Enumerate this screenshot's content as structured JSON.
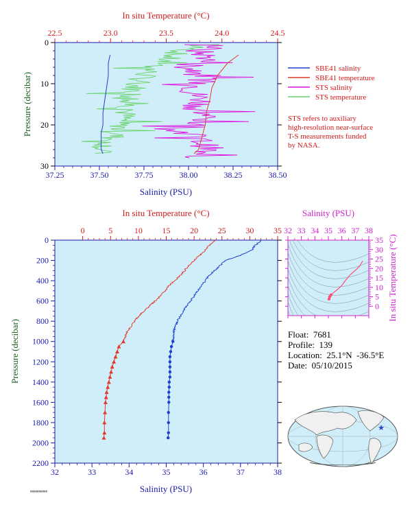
{
  "colors": {
    "plot_bg": "#cfeef9",
    "salinity_axis": "#1a1aaa",
    "temperature_axis": "#d11a1a",
    "sbe41_salinity": "#1f3fd0",
    "sbe41_temperature": "#e23a2a",
    "sts_salinity": "#e010e0",
    "sts_temperature": "#6ad36a",
    "pressure_axis": "#1b5e20",
    "ts_axis": "#cc22cc",
    "ts_profile": "#ff4f7b"
  },
  "top_panel": {
    "temp_axis_title": "In situ Temperature (°C)",
    "sal_axis_title": "Salinity (PSU)",
    "pressure_axis_title": "Pressure (decibar)",
    "legend": [
      {
        "label": "SBE41 salinity",
        "color": "#1f3fd0"
      },
      {
        "label": "SBE41 temperature",
        "color": "#e23a2a"
      },
      {
        "label": "STS salinity",
        "color": "#e010e0"
      },
      {
        "label": "STS temperature",
        "color": "#6ad36a"
      }
    ],
    "note_lines": [
      "STS refers to auxiliary",
      "high-resolution near-surface",
      "T-S measurements funded",
      "by NASA."
    ]
  },
  "bottom_panel": {
    "temp_axis_title": "In situ Temperature (°C)",
    "sal_axis_title": "Salinity (PSU)",
    "pressure_axis_title": "Pressure (decibar)"
  },
  "ts_panel": {
    "sal_axis_title": "Salinity (PSU)",
    "temp_axis_title": "In situ Temperature (°C)"
  },
  "info": {
    "float": "Float:  7681",
    "profile": "Profile:  139",
    "location": "Location:  25.1°N  -36.5°E",
    "date": "Date:  05/10/2015"
  },
  "footer_tag": "##########",
  "chart_data": [
    {
      "type": "line",
      "name": "near-surface profile",
      "xlabel_top": "In situ Temperature (°C)",
      "xlim_top": [
        22.5,
        24.5
      ],
      "xticks_top": [
        "22.5",
        "23.0",
        "23.5",
        "24.0",
        "24.5"
      ],
      "xlabel_bottom": "Salinity (PSU)",
      "xlim_bottom": [
        37.25,
        38.5
      ],
      "xticks_bottom": [
        "37.25",
        "37.50",
        "37.75",
        "38.00",
        "38.25",
        "38.50"
      ],
      "ylabel": "Pressure (decibar)",
      "ylim": [
        30,
        0
      ],
      "yticks": [
        "0",
        "10",
        "20",
        "30"
      ],
      "series": [
        {
          "name": "SBE41 salinity",
          "axis": "salinity",
          "x": [
            37.56,
            37.55,
            37.55,
            37.54,
            37.53,
            37.52,
            37.52,
            37.51,
            37.51,
            37.51,
            37.52
          ],
          "y": [
            3,
            5,
            8,
            11,
            14,
            17,
            20,
            22,
            24,
            26,
            27
          ]
        },
        {
          "name": "SBE41 temperature",
          "axis": "temperature",
          "x": [
            24.15,
            24.05,
            23.96,
            23.91,
            23.89,
            23.86,
            23.85,
            23.83,
            23.81,
            23.79,
            23.75
          ],
          "y": [
            3,
            5,
            8,
            11,
            14,
            17,
            20,
            22,
            24,
            26,
            27
          ]
        },
        {
          "name": "STS salinity",
          "axis": "salinity",
          "x": [
            38.2,
            38.05,
            38.12,
            38.0,
            38.1,
            38.06,
            38.02,
            38.08,
            38.05,
            38.1,
            38.03,
            38.0,
            38.07,
            38.12,
            38.02,
            38.05
          ],
          "y": [
            0.5,
            2,
            4,
            6,
            8,
            10,
            12,
            14,
            16,
            18,
            20,
            22,
            24,
            26,
            27,
            28
          ]
        },
        {
          "name": "STS temperature",
          "axis": "temperature",
          "x": [
            23.96,
            23.62,
            23.5,
            23.38,
            23.3,
            23.24,
            23.2,
            23.18,
            23.15,
            23.12,
            23.1,
            23.05,
            23.0,
            22.92,
            22.88
          ],
          "y": [
            0.5,
            2,
            4,
            6,
            8,
            10,
            12,
            14,
            16,
            18,
            20,
            22,
            24,
            26,
            27
          ]
        }
      ]
    },
    {
      "type": "line",
      "name": "full-depth profile",
      "xlabel_top": "In situ Temperature (°C)",
      "xlim_top": [
        -5,
        35
      ],
      "xticks_top": [
        "0",
        "5",
        "10",
        "15",
        "20",
        "25",
        "30",
        "35"
      ],
      "xlabel_bottom": "Salinity (PSU)",
      "xlim_bottom": [
        32,
        38
      ],
      "xticks_bottom": [
        "32",
        "33",
        "34",
        "35",
        "36",
        "37",
        "38"
      ],
      "ylabel": "Pressure (decibar)",
      "ylim": [
        2200,
        0
      ],
      "yticks": [
        "0",
        "200",
        "400",
        "600",
        "800",
        "1000",
        "1200",
        "1400",
        "1600",
        "1800",
        "2000",
        "2200"
      ],
      "series": [
        {
          "name": "temperature",
          "axis": "temperature",
          "x": [
            24.0,
            23.5,
            22.8,
            22.0,
            21.0,
            20.0,
            19.0,
            18.3,
            17.5,
            16.5,
            15.5,
            14.8,
            14.0,
            13.0,
            12.0,
            11.0,
            10.0,
            9.3,
            8.7,
            8.0,
            7.3
          ],
          "y": [
            0,
            20,
            50,
            100,
            150,
            200,
            250,
            300,
            350,
            400,
            450,
            500,
            550,
            600,
            650,
            700,
            750,
            800,
            850,
            900,
            1000
          ],
          "deep_points": {
            "x": [
              7.3,
              6.5,
              6.2,
              5.9,
              5.6,
              5.3,
              5.1,
              4.9,
              4.7,
              4.5,
              4.3,
              4.2,
              4.1,
              4.0,
              3.9,
              3.9,
              3.8
            ],
            "y": [
              1000,
              1050,
              1100,
              1150,
              1200,
              1250,
              1300,
              1350,
              1400,
              1450,
              1500,
              1550,
              1600,
              1700,
              1800,
              1900,
              1950
            ]
          }
        },
        {
          "name": "salinity",
          "axis": "salinity",
          "x": [
            37.55,
            37.5,
            37.4,
            37.3,
            37.0,
            36.6,
            36.45,
            36.3,
            36.15,
            36.05,
            35.95,
            35.85,
            35.75,
            35.65,
            35.55,
            35.45,
            35.38,
            35.3,
            35.25,
            35.2,
            35.18
          ],
          "y": [
            0,
            20,
            50,
            100,
            150,
            200,
            250,
            300,
            350,
            400,
            450,
            500,
            550,
            600,
            650,
            700,
            750,
            800,
            850,
            900,
            1000
          ],
          "deep_points": {
            "x": [
              35.18,
              35.14,
              35.12,
              35.1,
              35.1,
              35.1,
              35.1,
              35.1,
              35.08,
              35.08,
              35.07,
              35.07,
              35.07,
              35.06,
              35.06,
              35.06,
              35.05
            ],
            "y": [
              1000,
              1050,
              1100,
              1150,
              1200,
              1250,
              1300,
              1350,
              1400,
              1450,
              1500,
              1550,
              1600,
              1700,
              1800,
              1900,
              1950
            ]
          }
        }
      ]
    },
    {
      "type": "scatter",
      "name": "T-S diagram",
      "xlabel": "Salinity (PSU)",
      "xlim": [
        32,
        38
      ],
      "xticks": [
        "32",
        "33",
        "34",
        "35",
        "36",
        "37",
        "38"
      ],
      "ylabel": "In situ Temperature (°C)",
      "ylim": [
        -5,
        35
      ],
      "yticks": [
        "0",
        "5",
        "10",
        "15",
        "20",
        "25",
        "30",
        "35"
      ],
      "series": [
        {
          "name": "T-S",
          "x": [
            35.05,
            35.1,
            35.2,
            35.4,
            35.7,
            36.0,
            36.3,
            36.6,
            37.0,
            37.3,
            37.55
          ],
          "y": [
            3.8,
            5,
            6,
            7.3,
            9,
            11,
            14,
            16.5,
            19,
            21,
            24
          ]
        }
      ]
    }
  ]
}
